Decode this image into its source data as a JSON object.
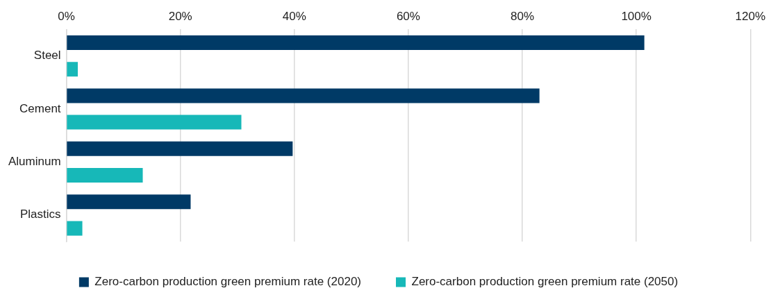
{
  "chart_data": {
    "type": "bar",
    "orientation": "horizontal",
    "categories": [
      "Steel",
      "Cement",
      "Aluminum",
      "Plastics"
    ],
    "series": [
      {
        "name": "Zero-carbon production green premium rate (2020)",
        "color": "#003a66",
        "values": [
          101.4,
          83,
          39.7,
          21.8
        ]
      },
      {
        "name": "Zero-carbon production green premium rate (2050)",
        "color": "#17b8b8",
        "values": [
          2,
          30.7,
          13.4,
          2.8
        ]
      }
    ],
    "xlim": [
      0,
      120
    ],
    "xticks": [
      {
        "value": 0,
        "label": "0%"
      },
      {
        "value": 20,
        "label": "20%"
      },
      {
        "value": 40,
        "label": "40%"
      },
      {
        "value": 60,
        "label": "60%"
      },
      {
        "value": 80,
        "label": "80%"
      },
      {
        "value": 100,
        "label": "100%"
      },
      {
        "value": 120,
        "label": "120%"
      }
    ],
    "grid": "x",
    "legend": "bottom"
  }
}
